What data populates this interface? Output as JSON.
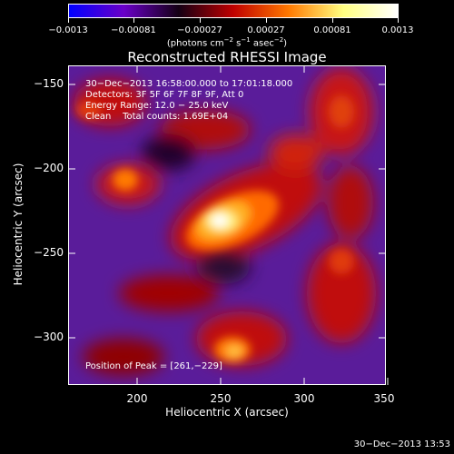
{
  "colorbar": {
    "tick_labels": [
      "−0.0013",
      "−0.00081",
      "−0.00027",
      "0.00027",
      "0.00081",
      "0.0013"
    ],
    "units_text": "(photons cm",
    "units_sup1": "−2",
    "units_mid": " s",
    "units_sup2": "−1",
    "units_end": " asec",
    "units_sup3": "−2",
    "units_close": ")",
    "stops": [
      "#0000ff",
      "#6a00c8",
      "#140014",
      "#c00000",
      "#ff7800",
      "#ffff80",
      "#ffffff"
    ]
  },
  "plot": {
    "title": "Reconstructed RHESSI Image",
    "info_lines": [
      "30−Dec−2013 16:58:00.000 to 17:01:18.000",
      "Detectors: 3F 5F 6F 7F 8F 9F, Att 0",
      "Energy Range: 12.0 − 25.0 keV",
      "Clean    Total counts: 1.69E+04"
    ],
    "peak_text": "Position of Peak = [261,−229]",
    "xlabel": "Heliocentric X (arcsec)",
    "ylabel": "Heliocentric Y (arcsec)",
    "xtick_labels": [
      "200",
      "250",
      "300",
      "350"
    ],
    "ytick_labels": [
      "−150",
      "−200",
      "−250",
      "−300"
    ]
  },
  "footer": {
    "timestamp": "30−Dec−2013 13:53"
  }
}
